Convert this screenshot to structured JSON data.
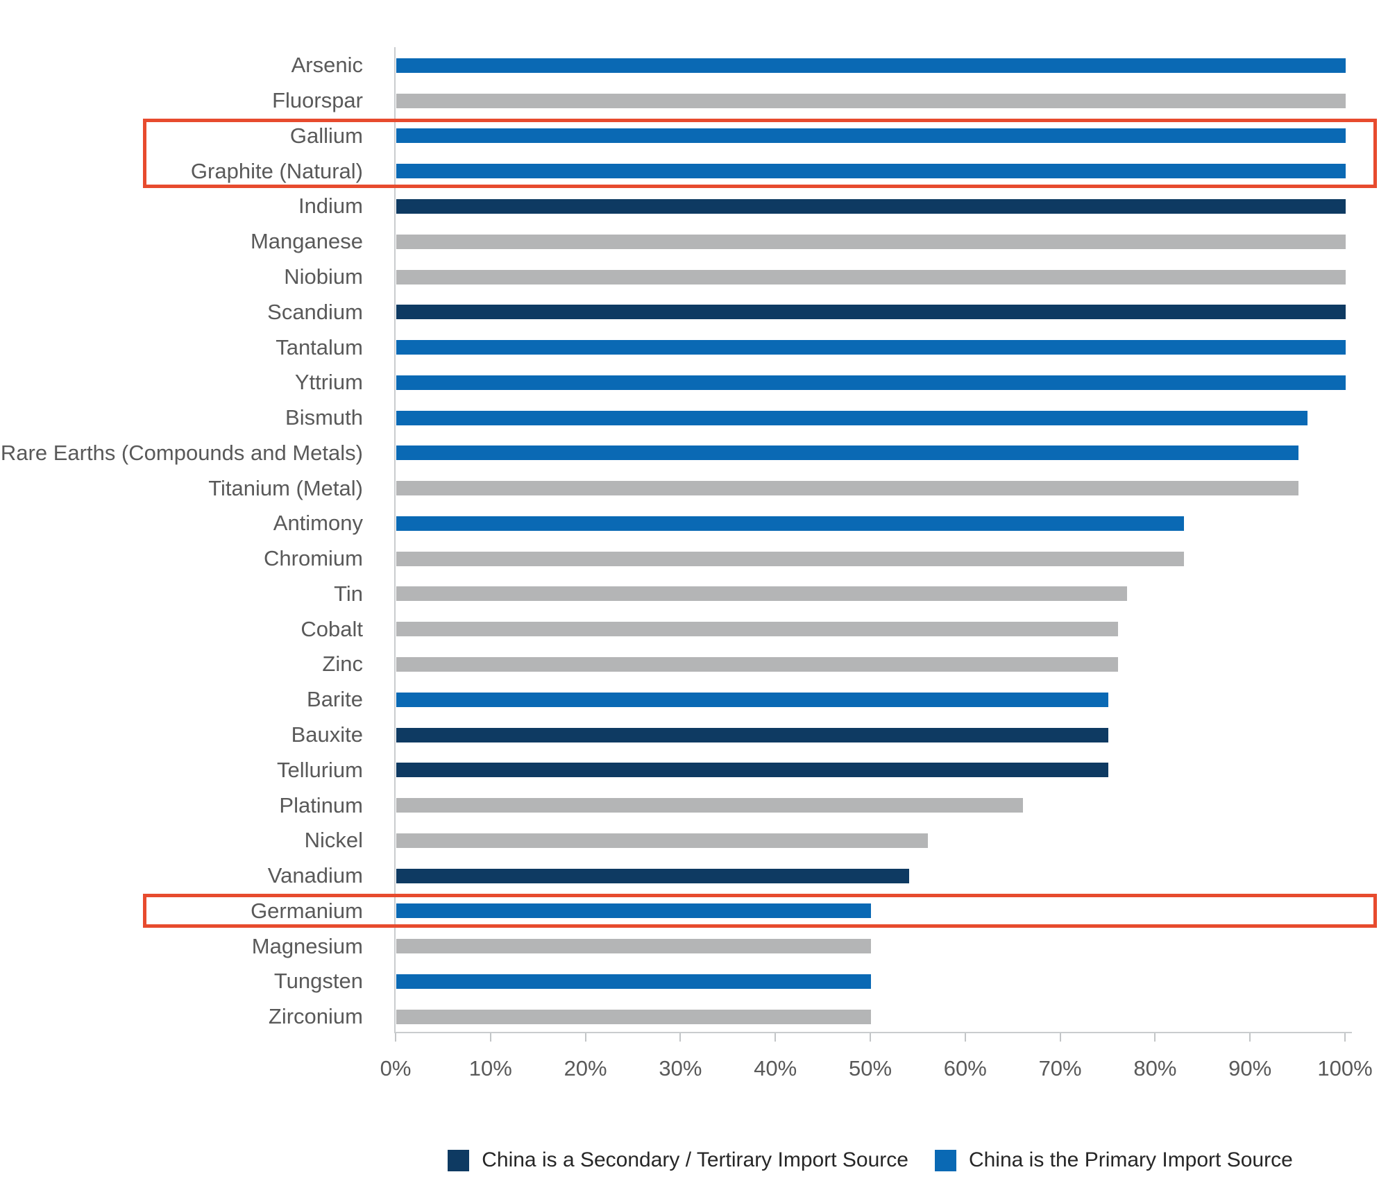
{
  "chart_data": {
    "type": "bar",
    "orientation": "horizontal",
    "title": "",
    "xlabel": "",
    "ylabel": "",
    "xlim": [
      0,
      100
    ],
    "x_ticks": [
      "0%",
      "10%",
      "20%",
      "30%",
      "40%",
      "50%",
      "60%",
      "70%",
      "80%",
      "90%",
      "100%"
    ],
    "grid": false,
    "legend_position": "bottom",
    "categories": [
      "Arsenic",
      "Fluorspar",
      "Gallium",
      "Graphite (Natural)",
      "Indium",
      "Manganese",
      "Niobium",
      "Scandium",
      "Tantalum",
      "Yttrium",
      "Bismuth",
      "Rare Earths (Compounds and Metals)",
      "Titanium (Metal)",
      "Antimony",
      "Chromium",
      "Tin",
      "Cobalt",
      "Zinc",
      "Barite",
      "Bauxite",
      "Tellurium",
      "Platinum",
      "Nickel",
      "Vanadium",
      "Germanium",
      "Magnesium",
      "Tungsten",
      "Zirconium"
    ],
    "values": [
      100,
      100,
      100,
      100,
      100,
      100,
      100,
      100,
      100,
      100,
      96,
      95,
      95,
      83,
      83,
      77,
      76,
      76,
      75,
      75,
      75,
      66,
      56,
      54,
      50,
      50,
      50,
      50
    ],
    "group_by_row": [
      "primary",
      "other",
      "primary",
      "primary",
      "secondary",
      "other",
      "other",
      "secondary",
      "primary",
      "primary",
      "primary",
      "primary",
      "other",
      "primary",
      "other",
      "other",
      "other",
      "other",
      "primary",
      "secondary",
      "secondary",
      "other",
      "other",
      "secondary",
      "primary",
      "other",
      "primary",
      "other"
    ],
    "colors": {
      "primary": "#0a69b4",
      "secondary": "#0e3a62",
      "other": "#b4b5b6"
    },
    "highlight_color": "#e74b2e",
    "highlight_boxes": [
      {
        "categories": [
          "Gallium",
          "Graphite (Natural)"
        ]
      },
      {
        "categories": [
          "Germanium"
        ]
      }
    ],
    "legend": [
      {
        "label": "China is a Secondary / Tertirary Import Source",
        "color_key": "secondary"
      },
      {
        "label": "China is the Primary Import Source",
        "color_key": "primary"
      }
    ]
  }
}
